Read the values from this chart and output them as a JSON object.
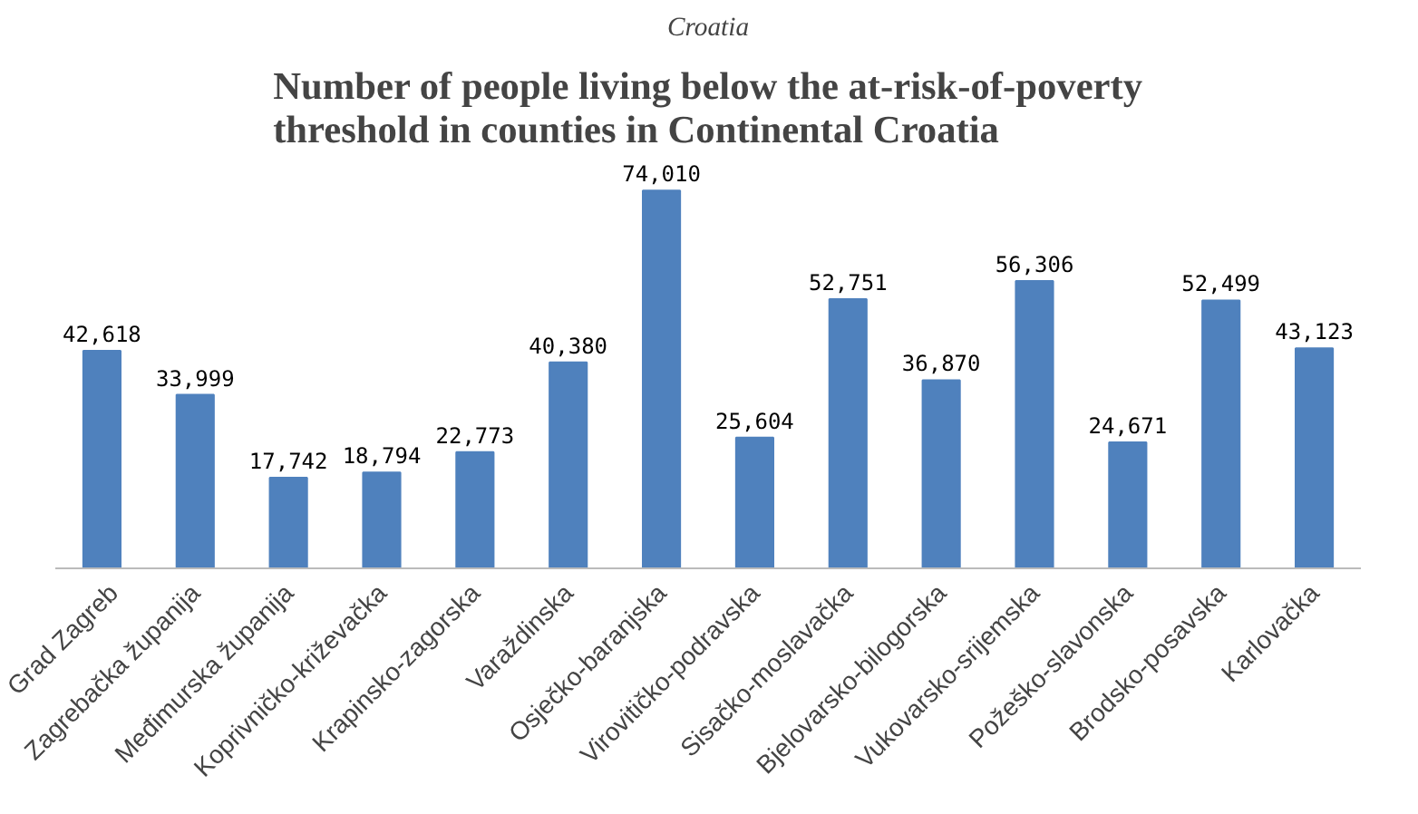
{
  "chart_data": {
    "type": "bar",
    "title": "Number of people living below the at-risk-of-poverty\nthreshold in counties in Continental Croatia",
    "annotations": [
      "Croatia"
    ],
    "categories": [
      "Grad Zagreb",
      "Zagrebačka županija",
      "Međimurska županija",
      "Koprivničko-križevačka",
      "Krapinsko-zagorska",
      "Varaždinska",
      "Osječko-baranjska",
      "Virovitičko-podravska",
      "Sisačko-moslavačka",
      "Bjelovarsko-bilogorska",
      "Vukovarsko-srijemska",
      "Požeško-slavonska",
      "Brodsko-posavska",
      "Karlovačka"
    ],
    "values": [
      42618,
      33999,
      17742,
      18794,
      22773,
      40380,
      74010,
      25604,
      52751,
      36870,
      56306,
      24671,
      52499,
      43123
    ],
    "value_labels": [
      "42,618",
      "33,999",
      "17,742",
      "18,794",
      "22,773",
      "40,380",
      "74,010",
      "25,604",
      "52,751",
      "36,870",
      "56,306",
      "24,671",
      "52,499",
      "43,123"
    ],
    "color": "#4f81bd",
    "tick_labels": "x"
  }
}
